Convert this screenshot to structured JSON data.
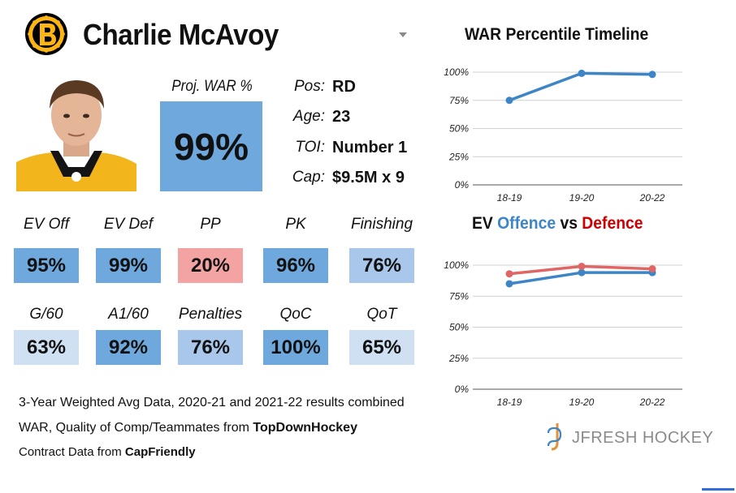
{
  "player": {
    "name": "Charlie McAvoy",
    "proj_war_label": "Proj. WAR %",
    "proj_war_value": "99%",
    "info": [
      {
        "label": "Pos:",
        "value": "RD"
      },
      {
        "label": "Age:",
        "value": "23"
      },
      {
        "label": "TOI:",
        "value": "Number 1"
      },
      {
        "label": "Cap:",
        "value": "$9.5M x 9"
      }
    ]
  },
  "colors": {
    "strong_blue": "#6fa8dc",
    "mid_blue": "#a8c7ea",
    "light_blue": "#cfe0f3",
    "red": "#f4a3a3",
    "line_blue": "#3d85c6",
    "line_red": "#e06666",
    "title_blue": "#3d85c6",
    "title_red": "#cc0000"
  },
  "stats_row1": [
    {
      "label": "EV Off",
      "value": "95%",
      "color": "#6fa8dc"
    },
    {
      "label": "EV Def",
      "value": "99%",
      "color": "#6fa8dc"
    },
    {
      "label": "PP",
      "value": "20%",
      "color": "#f4a3a3"
    },
    {
      "label": "PK",
      "value": "96%",
      "color": "#6fa8dc"
    },
    {
      "label": "Finishing",
      "value": "76%",
      "color": "#a8c7ea"
    }
  ],
  "stats_row2": [
    {
      "label": "G/60",
      "value": "63%",
      "color": "#cfe0f3"
    },
    {
      "label": "A1/60",
      "value": "92%",
      "color": "#6fa8dc"
    },
    {
      "label": "Penalties",
      "value": "76%",
      "color": "#a8c7ea"
    },
    {
      "label": "QoC",
      "value": "100%",
      "color": "#6fa8dc"
    },
    {
      "label": "QoT",
      "value": "65%",
      "color": "#cfe0f3"
    }
  ],
  "footer": {
    "line1": "3-Year Weighted Avg Data, 2020-21 and 2021-22 results combined",
    "line2_prefix": "WAR, Quality of Comp/Teammates from ",
    "line2_bold": "TopDownHockey",
    "line3_prefix": "Contract Data from ",
    "line3_bold": "CapFriendly"
  },
  "brand": {
    "text": "JFRESH HOCKEY",
    "icon": "jfresh-logo-icon"
  },
  "chart_data": [
    {
      "type": "line",
      "title": "WAR Percentile Timeline",
      "categories": [
        "18-19",
        "19-20",
        "20-22"
      ],
      "series": [
        {
          "values": [
            75,
            99,
            98
          ],
          "color": "#3d85c6"
        }
      ],
      "y_ticks": [
        "100%",
        "75%",
        "50%",
        "25%",
        "0%"
      ],
      "ylim": [
        0,
        100
      ],
      "grid": true
    },
    {
      "type": "line",
      "title_parts": [
        "EV ",
        "Offence",
        " vs ",
        "Defence"
      ],
      "categories": [
        "18-19",
        "19-20",
        "20-22"
      ],
      "series": [
        {
          "values": [
            85,
            94,
            94
          ],
          "color": "#3d85c6"
        },
        {
          "values": [
            93,
            99,
            97
          ],
          "color": "#e06666"
        }
      ],
      "y_ticks": [
        "100%",
        "75%",
        "50%",
        "25%",
        "0%"
      ],
      "ylim": [
        0,
        100
      ],
      "grid": true
    }
  ]
}
